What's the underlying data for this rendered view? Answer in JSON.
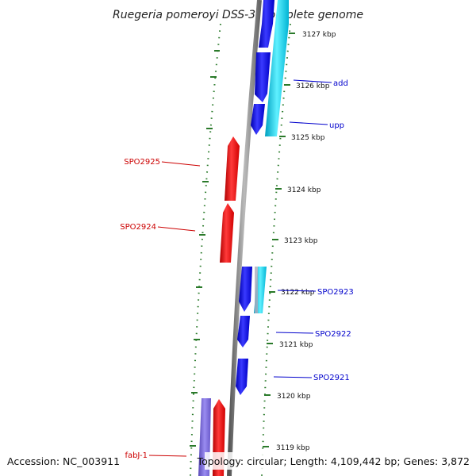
{
  "title": "Ruegeria pomeroyi DSS-3, complete genome",
  "footer": {
    "accession": "Accession: NC_003911",
    "summary": "Topology: circular; Length: 4,109,442 bp; Genes: 3,872"
  },
  "colors": {
    "forward_cds": "#0000ff",
    "reverse_cds": "#ff0000",
    "gene": "#00c8e6",
    "rna": "#7b68ee",
    "backbone": "#888888",
    "tick": "#2a7a2a",
    "label_fwd": "#0000cc",
    "label_rev": "#cc0000"
  },
  "kbp_labels": [
    "3127 kbp",
    "3126 kbp",
    "3125 kbp",
    "3124 kbp",
    "3123 kbp",
    "3122 kbp",
    "3121 kbp",
    "3120 kbp",
    "3119 kbp"
  ],
  "gene_labels_forward": [
    "add",
    "upp",
    "SPO2923",
    "SPO2922",
    "SPO2921"
  ],
  "gene_labels_reverse": [
    "SPO2925",
    "SPO2924",
    "fabJ-1"
  ]
}
